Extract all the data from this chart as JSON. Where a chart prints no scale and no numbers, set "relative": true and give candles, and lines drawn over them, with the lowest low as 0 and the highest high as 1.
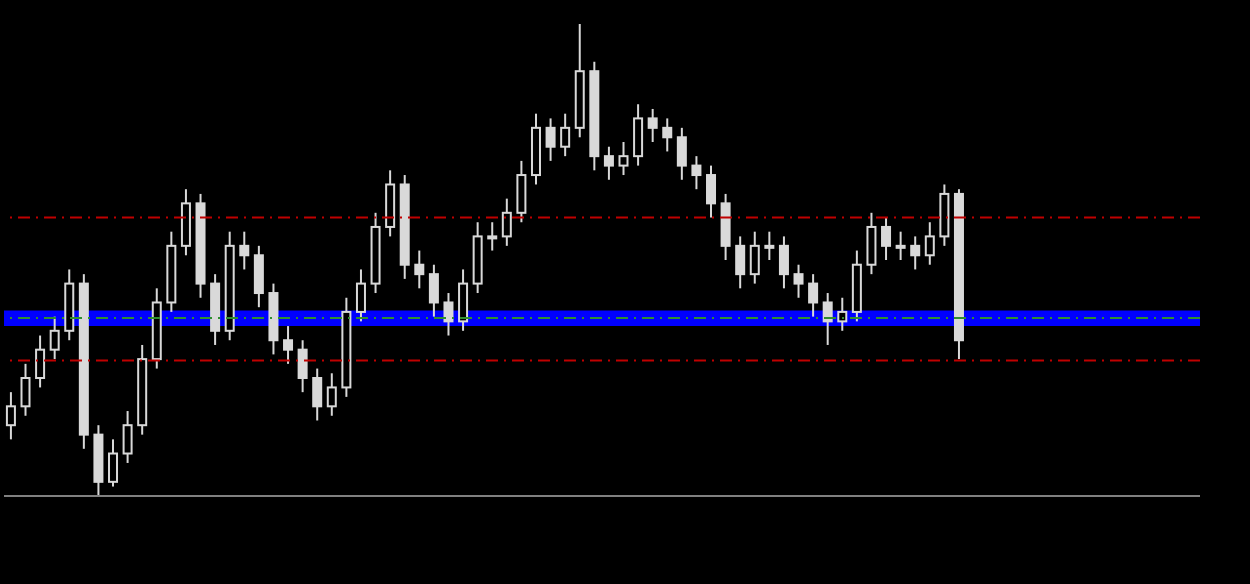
{
  "chart_data": {
    "type": "candlestick",
    "relative": true,
    "color": "#d9d9d9",
    "grid": false,
    "legend": false,
    "categories": [
      null,
      null,
      null,
      null,
      null,
      null,
      null,
      null,
      null,
      null,
      null,
      null,
      null,
      null,
      null,
      null,
      null,
      null,
      null,
      null,
      null,
      null,
      null,
      null,
      null,
      null,
      null,
      null,
      null,
      null,
      null,
      null,
      null,
      null,
      null,
      null,
      null,
      null,
      null,
      null,
      null,
      null,
      null,
      null,
      null,
      null,
      null,
      null,
      null,
      null,
      null,
      null,
      null,
      null,
      null,
      null,
      null,
      null,
      null,
      null,
      null,
      null,
      null,
      null,
      null,
      null,
      null,
      null,
      null,
      null,
      null,
      null,
      null,
      null,
      null,
      null,
      null,
      null,
      null,
      null,
      null,
      null
    ],
    "ohlc": [
      [
        0.15,
        0.22,
        0.12,
        0.19
      ],
      [
        0.19,
        0.28,
        0.17,
        0.25
      ],
      [
        0.25,
        0.34,
        0.23,
        0.31
      ],
      [
        0.31,
        0.38,
        0.29,
        0.35
      ],
      [
        0.35,
        0.48,
        0.33,
        0.45
      ],
      [
        0.45,
        0.47,
        0.1,
        0.13
      ],
      [
        0.13,
        0.15,
        0.0,
        0.03
      ],
      [
        0.03,
        0.12,
        0.02,
        0.09
      ],
      [
        0.09,
        0.18,
        0.07,
        0.15
      ],
      [
        0.15,
        0.32,
        0.13,
        0.29
      ],
      [
        0.29,
        0.44,
        0.27,
        0.41
      ],
      [
        0.41,
        0.56,
        0.39,
        0.53
      ],
      [
        0.53,
        0.65,
        0.51,
        0.62
      ],
      [
        0.62,
        0.64,
        0.42,
        0.45
      ],
      [
        0.45,
        0.47,
        0.32,
        0.35
      ],
      [
        0.35,
        0.56,
        0.33,
        0.53
      ],
      [
        0.53,
        0.56,
        0.48,
        0.51
      ],
      [
        0.51,
        0.53,
        0.4,
        0.43
      ],
      [
        0.43,
        0.45,
        0.3,
        0.33
      ],
      [
        0.33,
        0.36,
        0.28,
        0.31
      ],
      [
        0.31,
        0.33,
        0.22,
        0.25
      ],
      [
        0.25,
        0.27,
        0.16,
        0.19
      ],
      [
        0.19,
        0.26,
        0.17,
        0.23
      ],
      [
        0.23,
        0.42,
        0.21,
        0.39
      ],
      [
        0.39,
        0.48,
        0.37,
        0.45
      ],
      [
        0.45,
        0.6,
        0.43,
        0.57
      ],
      [
        0.57,
        0.69,
        0.55,
        0.66
      ],
      [
        0.66,
        0.68,
        0.46,
        0.49
      ],
      [
        0.49,
        0.52,
        0.44,
        0.47
      ],
      [
        0.47,
        0.49,
        0.38,
        0.41
      ],
      [
        0.41,
        0.43,
        0.34,
        0.37
      ],
      [
        0.37,
        0.48,
        0.35,
        0.45
      ],
      [
        0.45,
        0.58,
        0.43,
        0.55
      ],
      [
        0.55,
        0.58,
        0.52,
        0.55
      ],
      [
        0.55,
        0.63,
        0.53,
        0.6
      ],
      [
        0.6,
        0.71,
        0.58,
        0.68
      ],
      [
        0.68,
        0.81,
        0.66,
        0.78
      ],
      [
        0.78,
        0.8,
        0.71,
        0.74
      ],
      [
        0.74,
        0.81,
        0.72,
        0.78
      ],
      [
        0.78,
        1.0,
        0.76,
        0.9
      ],
      [
        0.9,
        0.92,
        0.69,
        0.72
      ],
      [
        0.72,
        0.74,
        0.67,
        0.7
      ],
      [
        0.7,
        0.75,
        0.68,
        0.72
      ],
      [
        0.72,
        0.83,
        0.7,
        0.8
      ],
      [
        0.8,
        0.82,
        0.75,
        0.78
      ],
      [
        0.78,
        0.8,
        0.73,
        0.76
      ],
      [
        0.76,
        0.78,
        0.67,
        0.7
      ],
      [
        0.7,
        0.72,
        0.65,
        0.68
      ],
      [
        0.68,
        0.7,
        0.59,
        0.62
      ],
      [
        0.62,
        0.64,
        0.5,
        0.53
      ],
      [
        0.53,
        0.55,
        0.44,
        0.47
      ],
      [
        0.47,
        0.56,
        0.45,
        0.53
      ],
      [
        0.53,
        0.56,
        0.5,
        0.53
      ],
      [
        0.53,
        0.55,
        0.44,
        0.47
      ],
      [
        0.47,
        0.49,
        0.42,
        0.45
      ],
      [
        0.45,
        0.47,
        0.38,
        0.41
      ],
      [
        0.41,
        0.43,
        0.32,
        0.37
      ],
      [
        0.37,
        0.42,
        0.35,
        0.39
      ],
      [
        0.39,
        0.52,
        0.37,
        0.49
      ],
      [
        0.49,
        0.6,
        0.47,
        0.57
      ],
      [
        0.57,
        0.59,
        0.5,
        0.53
      ],
      [
        0.53,
        0.56,
        0.5,
        0.53
      ],
      [
        0.53,
        0.55,
        0.48,
        0.51
      ],
      [
        0.51,
        0.58,
        0.49,
        0.55
      ],
      [
        0.55,
        0.66,
        0.53,
        0.64
      ],
      [
        0.64,
        0.65,
        0.29,
        0.33
      ],
      null,
      null,
      null,
      null,
      null,
      null,
      null,
      null,
      null,
      null,
      null,
      null,
      null,
      null,
      null,
      null
    ],
    "ref_lines": [
      {
        "axis": "y",
        "value": 0.59,
        "color": "#c00000",
        "line_style": "dashed"
      },
      {
        "axis": "y",
        "value": 0.377,
        "color": "#2f8f2f",
        "line_style": "dashed"
      },
      {
        "axis": "y",
        "value": 0.287,
        "color": "#c00000",
        "line_style": "dashed"
      }
    ],
    "bands": [
      {
        "axis": "y",
        "from": 0.36,
        "to": 0.393,
        "color": "#0000ff"
      }
    ]
  }
}
